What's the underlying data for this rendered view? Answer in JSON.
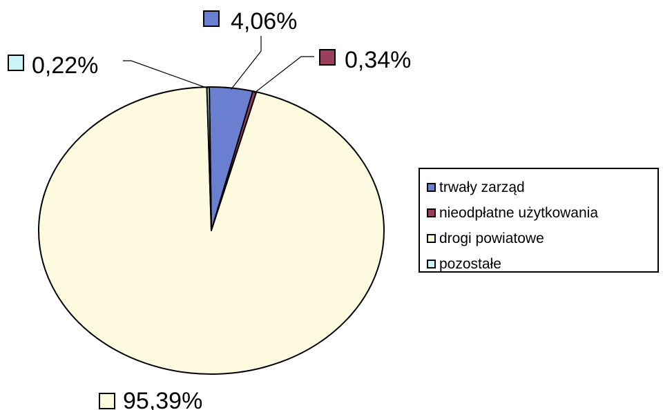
{
  "chart_data": {
    "type": "pie",
    "title": "",
    "series": [
      {
        "name": "trwały zarząd",
        "value": 4.06,
        "label": "4,06%",
        "color": "#6a7fcf"
      },
      {
        "name": "nieodpłatne użytkowania",
        "value": 0.34,
        "label": "0,34%",
        "color": "#9b3f5e"
      },
      {
        "name": "drogi powiatowe",
        "value": 95.39,
        "label": "95,39%",
        "color": "#fffbe0"
      },
      {
        "name": "pozostałe",
        "value": 0.22,
        "label": "0,22%",
        "color": "#ccf4f8"
      }
    ],
    "legend_position": "right"
  }
}
